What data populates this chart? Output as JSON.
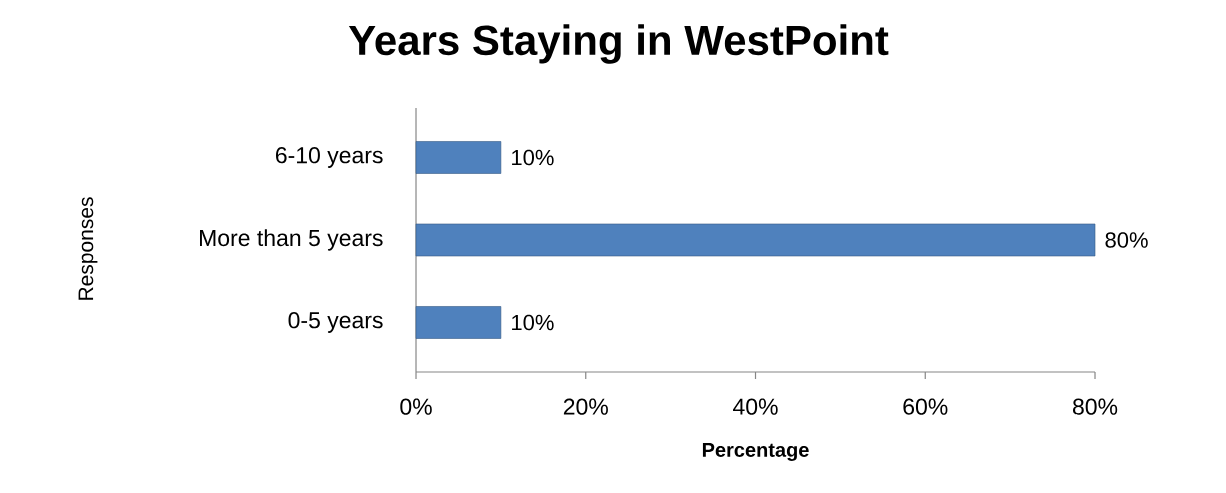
{
  "chart_data": {
    "type": "bar",
    "orientation": "horizontal",
    "title": "Years Staying in WestPoint",
    "xlabel": "Percentage",
    "ylabel": "Responses",
    "categories": [
      "6-10 years",
      "More than 5 years",
      "0-5 years"
    ],
    "values": [
      10,
      80,
      10
    ],
    "value_labels": [
      "10%",
      "80%",
      "10%"
    ],
    "color": "#4f81bd",
    "xlim": [
      0,
      80
    ],
    "xticks": [
      {
        "value": 0,
        "label": "0%"
      },
      {
        "value": 20,
        "label": "20%"
      },
      {
        "value": 40,
        "label": "40%"
      },
      {
        "value": 60,
        "label": "60%"
      },
      {
        "value": 80,
        "label": "80%"
      }
    ]
  }
}
